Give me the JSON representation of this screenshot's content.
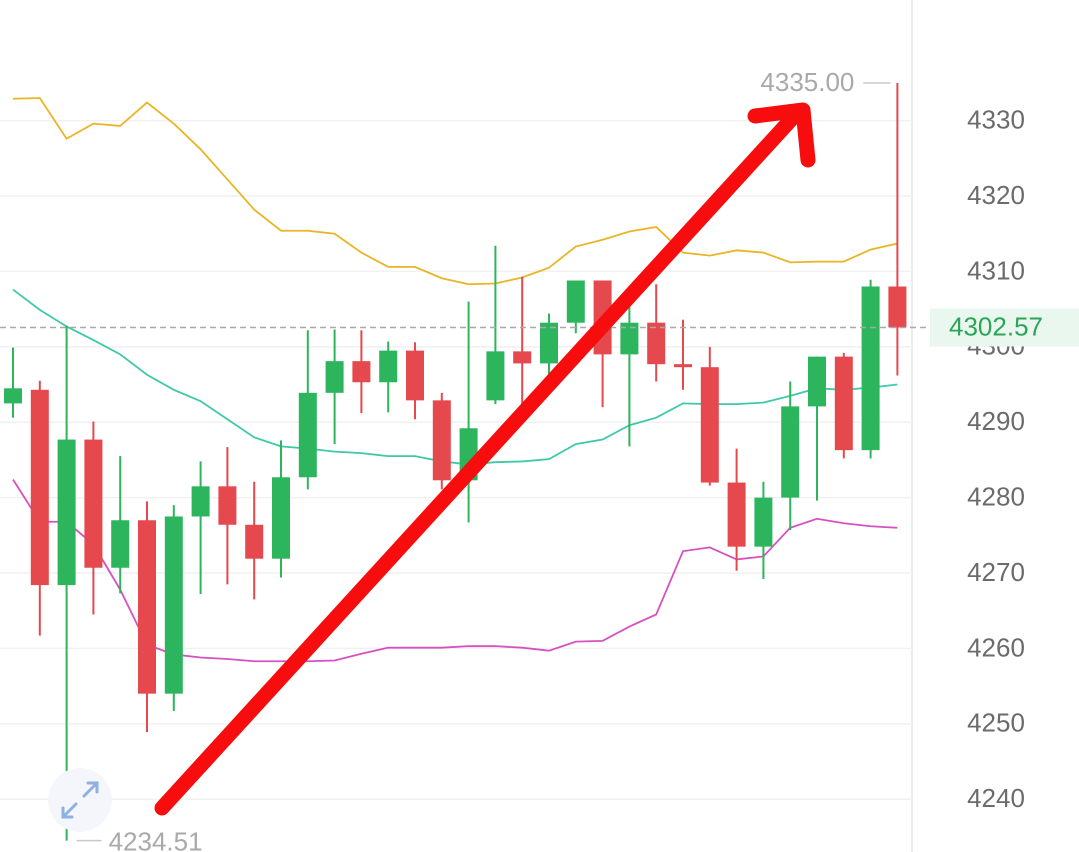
{
  "chart_data": {
    "type": "candlestick",
    "ylim": [
      4233,
      4346
    ],
    "yticks": [
      4240,
      4250,
      4260,
      4270,
      4280,
      4290,
      4300,
      4310,
      4320,
      4330
    ],
    "grid": true,
    "up_color": "#2db55d",
    "down_color": "#e5484d",
    "open": [
      4292.5,
      4294.3,
      4268.4,
      4287.7,
      4270.7,
      4277.0,
      4254.0,
      4277.5,
      4281.5,
      4276.4,
      4271.9,
      4282.7,
      4293.9,
      4298.1,
      4295.3,
      4299.5,
      4292.9,
      4282.3,
      4292.9,
      4299.4,
      4297.8,
      4303.2,
      4308.8,
      4299.0,
      4303.2,
      4297.7,
      4297.3,
      4282.0,
      4273.5,
      4280.0,
      4292.1,
      4298.7,
      4286.3,
      4308.0
    ],
    "high": [
      4299.9,
      4295.5,
      4302.8,
      4290.1,
      4285.5,
      4279.5,
      4279.0,
      4284.8,
      4286.7,
      4282.1,
      4287.6,
      4302.2,
      4302.3,
      4302.2,
      4300.7,
      4300.6,
      4293.9,
      4306.0,
      4313.4,
      4309.3,
      4304.4,
      4308.8,
      4308.8,
      4306.5,
      4308.3,
      4303.6,
      4300.0,
      4286.5,
      4282.1,
      4295.4,
      4298.7,
      4299.2,
      4308.9,
      4335
    ],
    "low": [
      4290.6,
      4261.7,
      4234.51,
      4264.5,
      4267.3,
      4248.9,
      4251.7,
      4267.2,
      4268.5,
      4266.5,
      4269.4,
      4281.1,
      4287.1,
      4291.2,
      4291.3,
      4290.4,
      4281.1,
      4276.7,
      4292.4,
      4292.4,
      4296.3,
      4301.8,
      4292.0,
      4286.8,
      4295.4,
      4294.3,
      4281.6,
      4270.3,
      4269.2,
      4275.7,
      4279.6,
      4285.2,
      4285.2,
      4296.2
    ],
    "close": [
      4294.5,
      4268.4,
      4287.7,
      4270.7,
      4277.0,
      4254.0,
      4277.5,
      4281.5,
      4276.4,
      4271.9,
      4282.7,
      4293.9,
      4298.1,
      4295.3,
      4299.5,
      4292.9,
      4282.3,
      4289.2,
      4299.4,
      4297.8,
      4303.2,
      4308.8,
      4299.0,
      4303.2,
      4297.7,
      4297.3,
      4282.0,
      4273.5,
      4280.0,
      4292.1,
      4298.7,
      4286.3,
      4308.0,
      4302.57
    ],
    "lines": [
      {
        "color": "#e9b526",
        "values": [
          4332.9,
          4333.0,
          4327.6,
          4329.6,
          4329.3,
          4332.4,
          4329.6,
          4326.2,
          4322.2,
          4318.2,
          4315.4,
          4315.4,
          4315.0,
          4312.5,
          4310.6,
          4310.6,
          4309.1,
          4308.3,
          4308.4,
          4309.2,
          4310.5,
          4313.3,
          4314.2,
          4315.3,
          4315.9,
          4312.5,
          4312.1,
          4312.8,
          4312.5,
          4311.2,
          4311.3,
          4311.3,
          4312.9,
          4313.7
        ]
      },
      {
        "color": "#3ec9a7",
        "values": [
          4307.6,
          4304.9,
          4302.7,
          4300.9,
          4299.0,
          4296.3,
          4294.3,
          4292.8,
          4290.4,
          4288.0,
          4286.8,
          4286.5,
          4286.1,
          4285.9,
          4285.5,
          4285.5,
          4284.8,
          4284.4,
          4284.7,
          4284.8,
          4285.1,
          4287.1,
          4287.7,
          4289.6,
          4290.6,
          4292.5,
          4292.4,
          4292.4,
          4292.6,
          4293.5,
          4294.5,
          4294.3,
          4294.6,
          4295.0
        ]
      },
      {
        "color": "#d651c0",
        "values": [
          4282.4,
          4276.8,
          4276.8,
          4273.8,
          4267.8,
          4260.5,
          4259.2,
          4258.8,
          4258.6,
          4258.3,
          4258.3,
          4258.3,
          4258.4,
          4259.3,
          4260.1,
          4260.1,
          4260.1,
          4260.3,
          4260.3,
          4260.1,
          4259.7,
          4260.9,
          4261.0,
          4262.9,
          4264.5,
          4272.9,
          4273.4,
          4271.8,
          4272.2,
          4276.0,
          4277.2,
          4276.6,
          4276.2,
          4276.0
        ]
      }
    ],
    "max_label": {
      "value": 4335,
      "label": "4335.00"
    },
    "min_label": 4234.51,
    "last_price": 4302.57
  }
}
